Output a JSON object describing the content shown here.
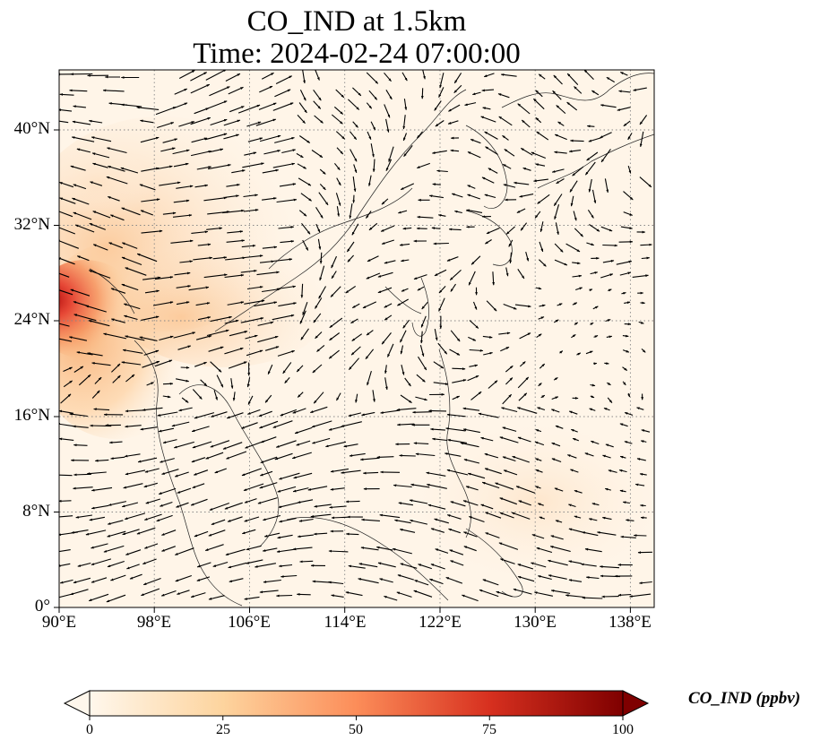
{
  "title": {
    "line1": "CO_IND at 1.5km",
    "line2": "Time: 2024-02-24 07:00:00"
  },
  "axes": {
    "lat_labels": [
      "40°N",
      "32°N",
      "24°N",
      "16°N",
      "8°N",
      "0°"
    ],
    "lon_labels": [
      "90°E",
      "98°E",
      "106°E",
      "114°E",
      "122°E",
      "130°E",
      "138°E"
    ],
    "lat_range": [
      0,
      44.5
    ],
    "lon_range": [
      90,
      140
    ],
    "gridlines": "dotted"
  },
  "colorbar": {
    "label": "CO_IND (ppbv)",
    "ticks": [
      "0",
      "25",
      "50",
      "75",
      "100"
    ],
    "range": [
      0,
      100
    ],
    "extend": "both",
    "colormap": "OrRd",
    "colors": [
      "#fff7ec",
      "#fdd49e",
      "#fc8d59",
      "#d7301f",
      "#7f0000"
    ]
  },
  "map": {
    "variable": "CO_IND",
    "level": "1.5km",
    "overlay": "wind vectors",
    "high_concentration_region": "northwest (approx. 90–100°E, 23–28°N)"
  }
}
